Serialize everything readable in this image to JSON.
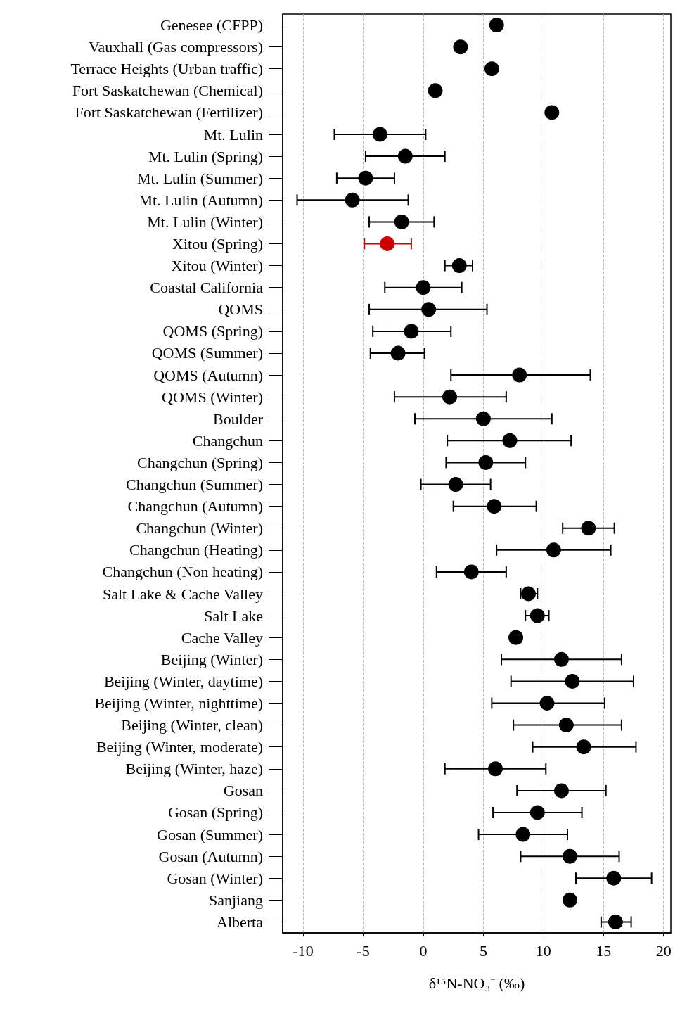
{
  "chart_data": {
    "type": "scatter",
    "orientation": "horizontal",
    "xlabel": "δ¹⁵N-NO₃⁻ (‰)",
    "categories": [
      "Genesee (CFPP)",
      "Vauxhall (Gas compressors)",
      "Terrace Heights (Urban traffic)",
      "Fort Saskatchewan (Chemical)",
      "Fort Saskatchewan (Fertilizer)",
      "Mt. Lulin",
      "Mt. Lulin (Spring)",
      "Mt. Lulin (Summer)",
      "Mt. Lulin (Autumn)",
      "Mt. Lulin (Winter)",
      "Xitou (Spring)",
      "Xitou (Winter)",
      "Coastal California",
      "QOMS",
      "QOMS (Spring)",
      "QOMS (Summer)",
      "QOMS (Autumn)",
      "QOMS (Winter)",
      "Boulder",
      "Changchun",
      "Changchun (Spring)",
      "Changchun (Summer)",
      "Changchun (Autumn)",
      "Changchun (Winter)",
      "Changchun (Heating)",
      "Changchun (Non heating)",
      "Salt Lake & Cache Valley",
      "Salt Lake",
      "Cache Valley",
      "Beijing (Winter)",
      "Beijing (Winter, daytime)",
      "Beijing (Winter, nighttime)",
      "Beijing (Winter, clean)",
      "Beijing (Winter, moderate)",
      "Beijing (Winter, haze)",
      "Gosan",
      "Gosan (Spring)",
      "Gosan (Summer)",
      "Gosan (Autumn)",
      "Gosan (Winter)",
      "Sanjiang",
      "Alberta"
    ],
    "values": [
      6.1,
      3.1,
      5.7,
      1.0,
      10.7,
      -3.6,
      -1.5,
      -4.8,
      -5.9,
      -1.8,
      -3.0,
      3.0,
      0.0,
      0.45,
      -1.0,
      -2.1,
      8.0,
      2.2,
      5.0,
      7.2,
      5.2,
      2.7,
      5.9,
      13.75,
      10.85,
      4.0,
      8.75,
      9.5,
      7.7,
      11.5,
      12.4,
      10.3,
      11.9,
      13.35,
      6.0,
      11.5,
      9.5,
      8.3,
      12.2,
      15.85,
      12.2,
      16.0
    ],
    "errors": [
      null,
      null,
      null,
      null,
      null,
      [
        -7.4,
        0.2
      ],
      [
        -4.8,
        1.8
      ],
      [
        -7.2,
        -2.4
      ],
      [
        -10.5,
        -1.25
      ],
      [
        -4.5,
        0.9
      ],
      [
        -4.9,
        -1.0
      ],
      [
        1.8,
        4.1
      ],
      [
        -3.2,
        3.2
      ],
      [
        -4.5,
        5.3
      ],
      [
        -4.2,
        2.3
      ],
      [
        -4.4,
        0.1
      ],
      [
        2.3,
        13.9
      ],
      [
        -2.4,
        6.9
      ],
      [
        -0.7,
        10.7
      ],
      [
        2.0,
        12.3
      ],
      [
        1.9,
        8.5
      ],
      [
        -0.2,
        5.6
      ],
      [
        2.5,
        9.4
      ],
      [
        11.6,
        15.9
      ],
      [
        6.1,
        15.6
      ],
      [
        1.1,
        6.9
      ],
      [
        8.1,
        9.5
      ],
      [
        8.5,
        10.45
      ],
      [
        7.3,
        8.1
      ],
      [
        6.5,
        16.5
      ],
      [
        7.3,
        17.5
      ],
      [
        5.7,
        15.1
      ],
      [
        7.5,
        16.5
      ],
      [
        9.1,
        17.7
      ],
      [
        1.8,
        10.2
      ],
      [
        7.8,
        15.2
      ],
      [
        5.8,
        13.2
      ],
      [
        4.6,
        12.0
      ],
      [
        8.1,
        16.3
      ],
      [
        12.7,
        19.0
      ],
      null,
      [
        14.8,
        17.3
      ]
    ],
    "colors": [
      "#000000",
      "#000000",
      "#000000",
      "#000000",
      "#000000",
      "#000000",
      "#000000",
      "#000000",
      "#000000",
      "#000000",
      "#cc0000",
      "#000000",
      "#000000",
      "#000000",
      "#000000",
      "#000000",
      "#000000",
      "#000000",
      "#000000",
      "#000000",
      "#000000",
      "#000000",
      "#000000",
      "#000000",
      "#000000",
      "#000000",
      "#000000",
      "#000000",
      "#000000",
      "#000000",
      "#000000",
      "#000000",
      "#000000",
      "#000000",
      "#000000",
      "#000000",
      "#000000",
      "#000000",
      "#000000",
      "#000000",
      "#000000",
      "#000000"
    ],
    "xlim": [
      -11.7,
      20.6
    ],
    "xticks": [
      -10,
      -5,
      0,
      5,
      10,
      15,
      20
    ],
    "grid": "x",
    "marker": "circle"
  }
}
